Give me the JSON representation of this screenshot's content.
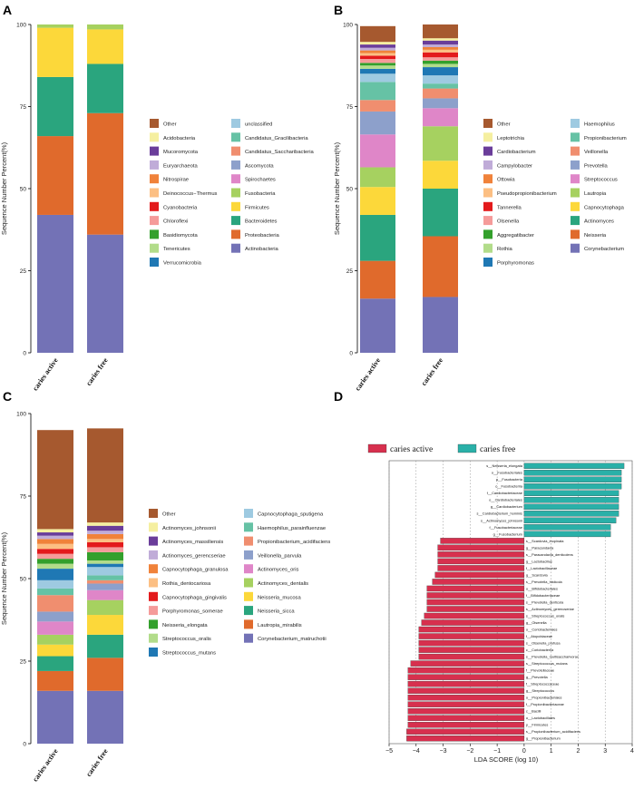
{
  "panel_labels": [
    "A",
    "B",
    "C",
    "D"
  ],
  "colors": {
    "Other": "#a6592f",
    "unclassified": "#9ecae1",
    "Acidobacteria": "#f5efa0",
    "Candidatus_Gracilibacteria": "#66c2a5",
    "Mucoromycota": "#6a3d9a",
    "Candidatus_Saccharibacteria": "#f08e6f",
    "Euryarchaeota": "#c0acd8",
    "Ascomycota": "#8da0cb",
    "Nitrospirae": "#f0823a",
    "Spirochaetes": "#df86c8",
    "Deinococcus-Thermus": "#fcbf83",
    "Fusobacteria": "#a6d160",
    "Cyanobacteria": "#e31a1c",
    "Firmicutes": "#fcd83a",
    "Chloroflexi": "#f59b9a",
    "Bacteroidetes": "#2aa57e",
    "Basidiomycota": "#33a02c",
    "Proteobacteria": "#e06a2c",
    "Tenericutes": "#b2dc8a",
    "Actinobacteria": "#7372b6",
    "Verrucomicrobia": "#1f78b4",
    "Leptotrichia": "#f5efa0",
    "Haemophilus": "#9ecae1",
    "Propionibacterium": "#66c2a5",
    "Cardiobacterium": "#6a3d9a",
    "Veillonella": "#f08e6f",
    "Campylobacter": "#c0acd8",
    "Prevotella": "#8da0cb",
    "Ottowia": "#f0823a",
    "Streptococcus": "#df86c8",
    "Pseudopropionibacterium": "#fcbf83",
    "Lautropia": "#a6d160",
    "Tannerella": "#e31a1c",
    "Capnocytophaga": "#fcd83a",
    "Olsenella": "#f59b9a",
    "Actinomyces": "#2aa57e",
    "Aggregatibacter": "#33a02c",
    "Neisseria": "#e06a2c",
    "Rothia": "#b2dc8a",
    "Corynebacterium": "#7372b6",
    "Porphyromonas": "#1f78b4",
    "Actinomyces_johnsonii": "#f5efa0",
    "Capnocytophaga_sputigena": "#9ecae1",
    "Actinomyces_massiliensis": "#6a3d9a",
    "Haemophilus_parainfluenzae": "#66c2a5",
    "Actinomyces_gerencseriae": "#c0acd8",
    "Propionibacterium_acidifaciens": "#f08e6f",
    "Capnocytophaga_granulosa": "#f0823a",
    "Veillonella_parvula": "#8da0cb",
    "Rothia_dentocariosa": "#fcbf83",
    "Actinomyces_oris": "#df86c8",
    "Capnocytophaga_gingivalis": "#e31a1c",
    "Actinomyces_dentalis": "#a6d160",
    "Porphyromonas_somerae": "#f59b9a",
    "Neisseria_mucosa": "#fcd83a",
    "Neisseria_elongata": "#33a02c",
    "Neisseria_sicca": "#2aa57e",
    "Streptococcus_oralis": "#b2dc8a",
    "Lautropia_mirabilis": "#e06a2c",
    "Streptococcus_mutans": "#1f78b4",
    "Corynebacterium_matruchotii": "#7372b6",
    "caries_active": "#d7304e",
    "caries_free": "#2ab0a8"
  },
  "chart_data": [
    {
      "type": "bar",
      "stacked": true,
      "panel": "A",
      "ylabel": "Sequence Number Percent(%)",
      "yticks": [
        "0",
        "25",
        "50",
        "75",
        "100"
      ],
      "ylim": [
        0,
        100
      ],
      "categories": [
        "caries active",
        "caries free"
      ],
      "legend": [
        [
          "Other",
          "unclassified"
        ],
        [
          "Acidobacteria",
          "Candidatus_Gracilibacteria"
        ],
        [
          "Mucoromycota",
          "Candidatus_Saccharibacteria"
        ],
        [
          "Euryarchaeota",
          "Ascomycota"
        ],
        [
          "Nitrospirae",
          "Spirochaetes"
        ],
        [
          "Deinococcus−Thermus",
          "Fusobacteria"
        ],
        [
          "Cyanobacteria",
          "Firmicutes"
        ],
        [
          "Chloroflexi",
          "Bacteroidetes"
        ],
        [
          "Basidiomycota",
          "Proteobacteria"
        ],
        [
          "Tenericutes",
          "Actinobacteria"
        ],
        [
          "Verrucomicrobia",
          ""
        ]
      ],
      "series": [
        {
          "name": "Actinobacteria",
          "key": "Actinobacteria",
          "values": [
            42,
            36
          ]
        },
        {
          "name": "Proteobacteria",
          "key": "Proteobacteria",
          "values": [
            24,
            37
          ]
        },
        {
          "name": "Bacteroidetes",
          "key": "Bacteroidetes",
          "values": [
            18,
            15
          ]
        },
        {
          "name": "Firmicutes",
          "key": "Firmicutes",
          "values": [
            15,
            10.5
          ]
        },
        {
          "name": "Fusobacteria",
          "key": "Fusobacteria",
          "values": [
            1,
            1.5
          ]
        }
      ]
    },
    {
      "type": "bar",
      "stacked": true,
      "panel": "B",
      "ylabel": "Sequence Number Percent(%)",
      "yticks": [
        "0",
        "25",
        "50",
        "75",
        "100"
      ],
      "ylim": [
        0,
        100
      ],
      "categories": [
        "caries active",
        "caries free"
      ],
      "legend": [
        [
          "Other",
          "Haemophilus"
        ],
        [
          "Leptotrichia",
          "Propionibacterium"
        ],
        [
          "Cardiobacterium",
          "Veillonella"
        ],
        [
          "Campylobacter",
          "Prevotella"
        ],
        [
          "Ottowia",
          "Streptococcus"
        ],
        [
          "Pseudopropionibacterium",
          "Lautropia"
        ],
        [
          "Tannerella",
          "Capnocytophaga"
        ],
        [
          "Olsenella",
          "Actinomyces"
        ],
        [
          "Aggregatibacter",
          "Neisseria"
        ],
        [
          "Rothia",
          "Corynebacterium"
        ],
        [
          "Porphyromonas",
          ""
        ]
      ],
      "series": [
        {
          "name": "Corynebacterium",
          "key": "Corynebacterium",
          "values": [
            16.5,
            17
          ]
        },
        {
          "name": "Neisseria",
          "key": "Neisseria",
          "values": [
            11.5,
            18.5
          ]
        },
        {
          "name": "Actinomyces",
          "key": "Actinomyces",
          "values": [
            14,
            14.5
          ]
        },
        {
          "name": "Capnocytophaga",
          "key": "Capnocytophaga",
          "values": [
            8.5,
            8.5
          ]
        },
        {
          "name": "Lautropia",
          "key": "Lautropia",
          "values": [
            6,
            10.5
          ]
        },
        {
          "name": "Streptococcus",
          "key": "Streptococcus",
          "values": [
            10,
            5.5
          ]
        },
        {
          "name": "Prevotella",
          "key": "Prevotella",
          "values": [
            7,
            3
          ]
        },
        {
          "name": "Veillonella",
          "key": "Veillonella",
          "values": [
            3.5,
            3
          ]
        },
        {
          "name": "Propionibacterium",
          "key": "Propionibacterium",
          "values": [
            5.5,
            1.5
          ]
        },
        {
          "name": "Haemophilus",
          "key": "Haemophilus",
          "values": [
            2.5,
            2.5
          ]
        },
        {
          "name": "Porphyromonas",
          "key": "Porphyromonas",
          "values": [
            1.5,
            2.5
          ]
        },
        {
          "name": "Rothia",
          "key": "Rothia",
          "values": [
            1,
            1
          ]
        },
        {
          "name": "Aggregatibacter",
          "key": "Aggregatibacter",
          "values": [
            0.8,
            1
          ]
        },
        {
          "name": "Olsenella",
          "key": "Olsenella",
          "values": [
            1.2,
            1
          ]
        },
        {
          "name": "Tannerella",
          "key": "Tannerella",
          "values": [
            1,
            1.5
          ]
        },
        {
          "name": "Pseudopropionibacterium",
          "key": "Pseudopropionibacterium",
          "values": [
            0.8,
            0.8
          ]
        },
        {
          "name": "Ottowia",
          "key": "Ottowia",
          "values": [
            0.8,
            0.8
          ]
        },
        {
          "name": "Campylobacter",
          "key": "Campylobacter",
          "values": [
            0.8,
            0.8
          ]
        },
        {
          "name": "Cardiobacterium",
          "key": "Cardiobacterium",
          "values": [
            1,
            1.2
          ]
        },
        {
          "name": "Leptotrichia",
          "key": "Leptotrichia",
          "values": [
            0.8,
            0.7
          ]
        },
        {
          "name": "Other",
          "key": "Other",
          "values": [
            4.8,
            4.2
          ]
        }
      ]
    },
    {
      "type": "bar",
      "stacked": true,
      "panel": "C",
      "ylabel": "Sequence Number Percent(%)",
      "yticks": [
        "0",
        "25",
        "50",
        "75",
        "100"
      ],
      "ylim": [
        0,
        100
      ],
      "categories": [
        "caries active",
        "caries free"
      ],
      "legend": [
        [
          "Other",
          "Capnocytophaga_sputigena"
        ],
        [
          "Actinomyces_johnsonii",
          "Haemophilus_parainfluenzae"
        ],
        [
          "Actinomyces_massiliensis",
          "Propionibacterium_acidifaciens"
        ],
        [
          "Actinomyces_gerencseriae",
          "Veillonella_parvula"
        ],
        [
          "Capnocytophaga_granulosa",
          "Actinomyces_oris"
        ],
        [
          "Rothia_dentocariosa",
          "Actinomyces_dentalis"
        ],
        [
          "Capnocytophaga_gingivalis",
          "Neisseria_mucosa"
        ],
        [
          "Porphyromonas_somerae",
          "Neisseria_sicca"
        ],
        [
          "Neisseria_elongata",
          "Lautropia_mirabilis"
        ],
        [
          "Streptococcus_oralis",
          "Corynebacterium_matruchotii"
        ],
        [
          "Streptococcus_mutans",
          ""
        ]
      ],
      "series": [
        {
          "name": "Corynebacterium_matruchotii",
          "key": "Corynebacterium_matruchotii",
          "values": [
            16,
            16
          ]
        },
        {
          "name": "Lautropia_mirabilis",
          "key": "Lautropia_mirabilis",
          "values": [
            6,
            10
          ]
        },
        {
          "name": "Neisseria_sicca",
          "key": "Neisseria_sicca",
          "values": [
            4.5,
            7
          ]
        },
        {
          "name": "Neisseria_mucosa",
          "key": "Neisseria_mucosa",
          "values": [
            3.5,
            6
          ]
        },
        {
          "name": "Actinomyces_dentalis",
          "key": "Actinomyces_dentalis",
          "values": [
            3,
            4.5
          ]
        },
        {
          "name": "Actinomyces_oris",
          "key": "Actinomyces_oris",
          "values": [
            4,
            3
          ]
        },
        {
          "name": "Veillonella_parvula",
          "key": "Veillonella_parvula",
          "values": [
            3,
            2
          ]
        },
        {
          "name": "Propionibacterium_acidifaciens",
          "key": "Propionibacterium_acidifaciens",
          "values": [
            5,
            1
          ]
        },
        {
          "name": "Haemophilus_parainfluenzae",
          "key": "Haemophilus_parainfluenzae",
          "values": [
            2,
            1.5
          ]
        },
        {
          "name": "Capnocytophaga_sputigena",
          "key": "Capnocytophaga_sputigena",
          "values": [
            2.5,
            2.5
          ]
        },
        {
          "name": "Streptococcus_mutans",
          "key": "Streptococcus_mutans",
          "values": [
            3.5,
            1
          ]
        },
        {
          "name": "Streptococcus_oralis",
          "key": "Streptococcus_oralis",
          "values": [
            1.5,
            1
          ]
        },
        {
          "name": "Neisseria_elongata",
          "key": "Neisseria_elongata",
          "values": [
            1.5,
            2.5
          ]
        },
        {
          "name": "Porphyromonas_somerae",
          "key": "Porphyromonas_somerae",
          "values": [
            1.5,
            1.5
          ]
        },
        {
          "name": "Capnocytophaga_gingivalis",
          "key": "Capnocytophaga_gingivalis",
          "values": [
            1.5,
            1.5
          ]
        },
        {
          "name": "Rothia_dentocariosa",
          "key": "Rothia_dentocariosa",
          "values": [
            1.5,
            1
          ]
        },
        {
          "name": "Capnocytophaga_granulosa",
          "key": "Capnocytophaga_granulosa",
          "values": [
            1.5,
            1.5
          ]
        },
        {
          "name": "Actinomyces_gerencseriae",
          "key": "Actinomyces_gerencseriae",
          "values": [
            1,
            1
          ]
        },
        {
          "name": "Actinomyces_massiliensis",
          "key": "Actinomyces_massiliensis",
          "values": [
            1,
            1.5
          ]
        },
        {
          "name": "Actinomyces_johnsonii",
          "key": "Actinomyces_johnsonii",
          "values": [
            1,
            1
          ]
        },
        {
          "name": "Other",
          "key": "Other",
          "values": [
            30,
            28.5
          ]
        }
      ]
    },
    {
      "type": "bar",
      "orientation": "horizontal",
      "panel": "D",
      "xlabel": "LDA SCORE (log 10)",
      "xticks": [
        -5,
        -4,
        -3,
        -2,
        -1,
        0,
        1,
        2,
        3,
        4
      ],
      "xlim": [
        -5,
        4
      ],
      "legend": [
        {
          "label": "caries active",
          "key": "caries_active"
        },
        {
          "label": "caries free",
          "key": "caries_free"
        }
      ],
      "features": [
        {
          "label": "s__Neisseria_elongata",
          "value": 3.7
        },
        {
          "label": "o__Fusobacteriales",
          "value": 3.6
        },
        {
          "label": "p__Fusobacteria",
          "value": 3.6
        },
        {
          "label": "c__Fusobacteriia",
          "value": 3.6
        },
        {
          "label": "f__Cardiobacteriaceae",
          "value": 3.5
        },
        {
          "label": "o__Cardiobacteriales",
          "value": 3.5
        },
        {
          "label": "g__Cardiobacterium",
          "value": 3.5
        },
        {
          "label": "s__Cardiobacterium_hominis",
          "value": 3.5
        },
        {
          "label": "s__Actinomyces_johnsonii",
          "value": 3.4
        },
        {
          "label": "f__Fusobacteriaceae",
          "value": 3.2
        },
        {
          "label": "g__Fusobacterium",
          "value": 3.2
        },
        {
          "label": "s__Scardovia_inopinata",
          "value": -3.1
        },
        {
          "label": "g__Paracandavia",
          "value": -3.2
        },
        {
          "label": "s__Paracandavia_denticolens",
          "value": -3.2
        },
        {
          "label": "g__Lactobacillus",
          "value": -3.2
        },
        {
          "label": "f__Lactobacillaceae",
          "value": -3.2
        },
        {
          "label": "g__Scardovia",
          "value": -3.3
        },
        {
          "label": "s__Prevotella_histicola",
          "value": -3.4
        },
        {
          "label": "o__Bifidobacteriales",
          "value": -3.6
        },
        {
          "label": "f__Bifidobacteriaceae",
          "value": -3.6
        },
        {
          "label": "s__Prevotella_denticola",
          "value": -3.6
        },
        {
          "label": "s__Actinomyces_gerencseriae",
          "value": -3.6
        },
        {
          "label": "s__Streptococcus_oralis",
          "value": -3.7
        },
        {
          "label": "g__Olsenella",
          "value": -3.8
        },
        {
          "label": "o__Coriobacteriales",
          "value": -3.9
        },
        {
          "label": "f__Atopobiaceae",
          "value": -3.9
        },
        {
          "label": "s__Olsenella_profusa",
          "value": -3.9
        },
        {
          "label": "c__Coriobacteriia",
          "value": -3.9
        },
        {
          "label": "s__Prevotella_multisaccharivorax",
          "value": -3.9
        },
        {
          "label": "s__Streptococcus_mutans",
          "value": -4.2
        },
        {
          "label": "f__Prevotellaceae",
          "value": -4.3
        },
        {
          "label": "g__Prevotella",
          "value": -4.3
        },
        {
          "label": "f__Streptococcaceae",
          "value": -4.3
        },
        {
          "label": "g__Streptococcus",
          "value": -4.3
        },
        {
          "label": "o__Propionibacteriales",
          "value": -4.3
        },
        {
          "label": "f__Propionibacteriaceae",
          "value": -4.3
        },
        {
          "label": "c__Bacilli",
          "value": -4.3
        },
        {
          "label": "o__Lactobacillales",
          "value": -4.3
        },
        {
          "label": "p__Firmicutes",
          "value": -4.3
        },
        {
          "label": "s__Propionibacterium_acidifaciens",
          "value": -4.35
        },
        {
          "label": "g__Propionibacterium",
          "value": -4.35
        }
      ]
    }
  ]
}
